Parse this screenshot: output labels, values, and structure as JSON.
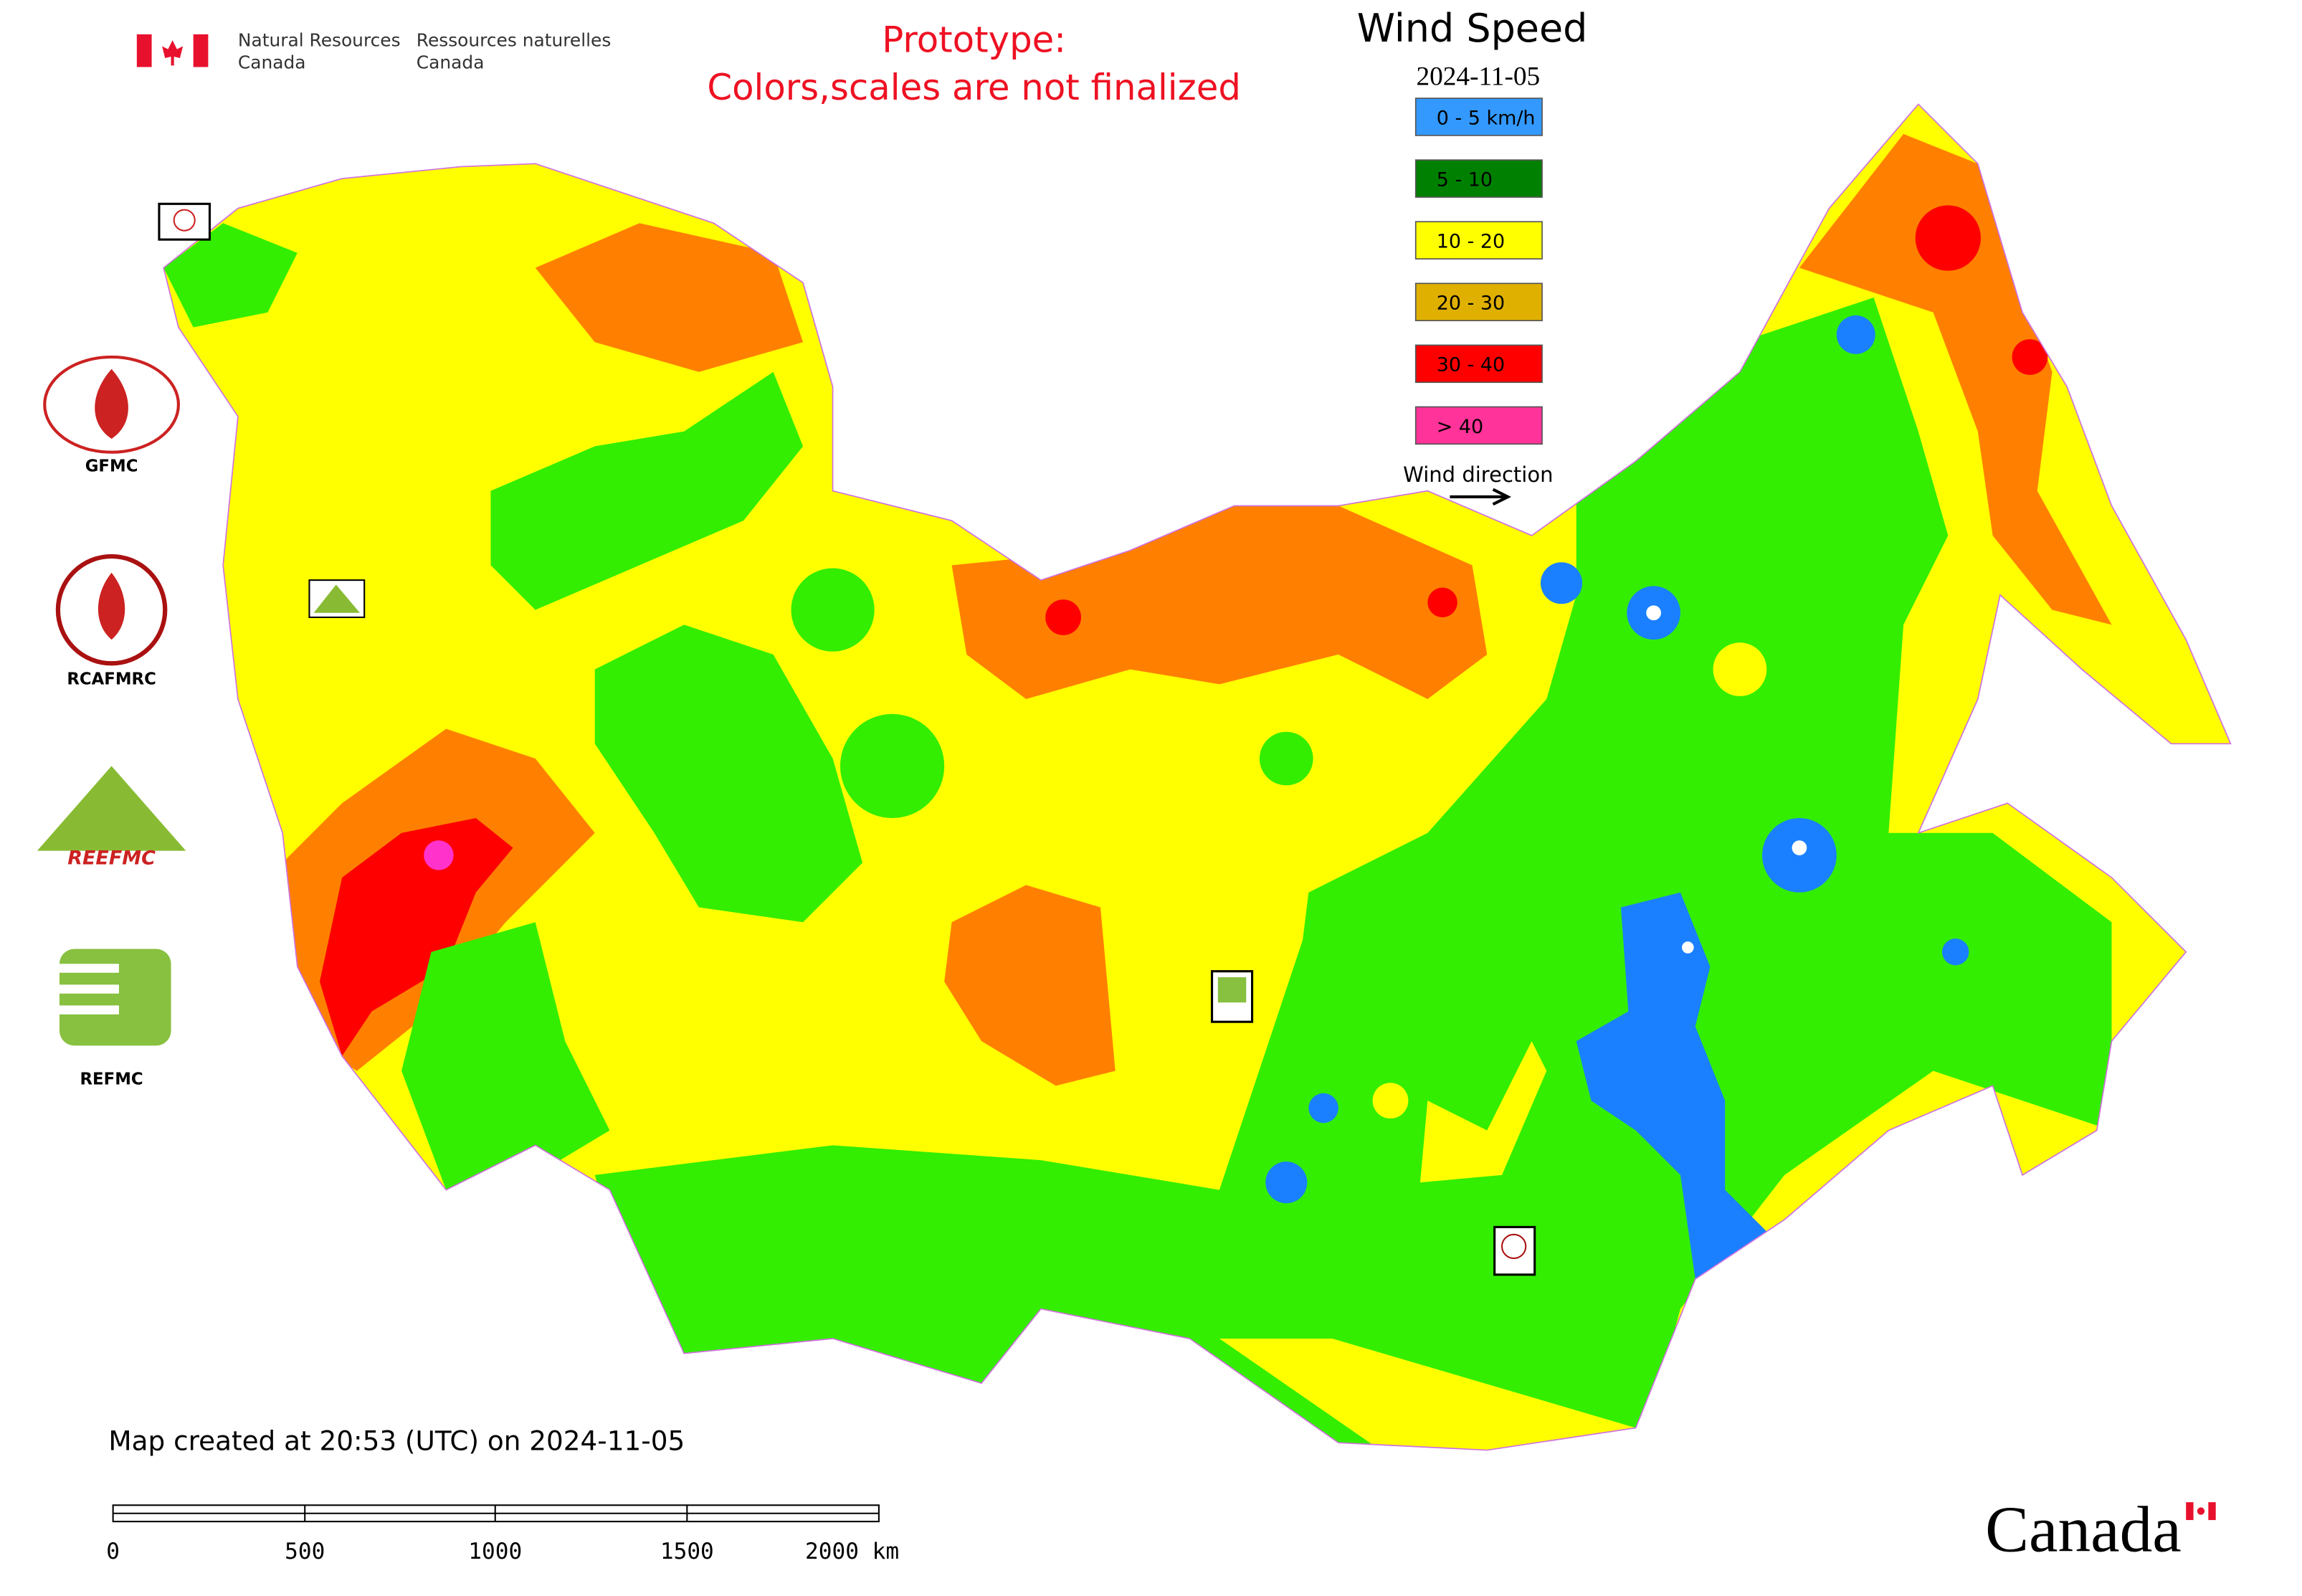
{
  "header": {
    "agency_en_line1": "Natural Resources",
    "agency_en_line2": "Canada",
    "agency_fr_line1": "Ressources naturelles",
    "agency_fr_line2": "Canada"
  },
  "notice": {
    "line1": "Prototype:",
    "line2": "Colors,scales are not finalized"
  },
  "legend": {
    "title": "Wind Speed",
    "date": "2024-11-05",
    "classes": [
      {
        "label": "0 - 5 km/h",
        "color": "#3399ff"
      },
      {
        "label": "5 - 10",
        "color": "#008000"
      },
      {
        "label": "10 - 20",
        "color": "#ffff00"
      },
      {
        "label": "20 - 30",
        "color": "#e0b000"
      },
      {
        "label": "30 - 40",
        "color": "#ff0000"
      },
      {
        "label": "> 40",
        "color": "#ff3399"
      }
    ],
    "direction_label": "Wind direction"
  },
  "logos": [
    "GFMC",
    "RCAFMRC",
    "REEFMC",
    "REFMC"
  ],
  "footer": {
    "created": "Map created at 20:53 (UTC) on 2024-11-05",
    "scale_ticks": [
      "0",
      "500",
      "1000",
      "1500",
      "2000 km"
    ],
    "wordmark": "Canada"
  }
}
